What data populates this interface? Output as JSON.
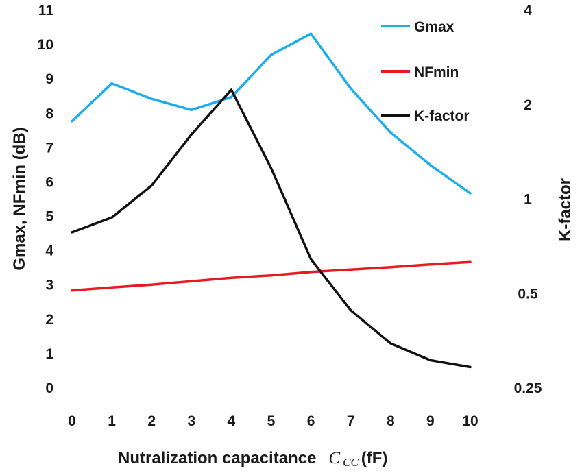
{
  "chart_data": {
    "type": "line",
    "title": "",
    "x": [
      0,
      1,
      2,
      3,
      4,
      5,
      6,
      7,
      8,
      9,
      10
    ],
    "xlim": [
      0,
      10
    ],
    "x_ticks": [
      "0",
      "1",
      "2",
      "3",
      "4",
      "5",
      "6",
      "7",
      "8",
      "9",
      "10"
    ],
    "xlabel": {
      "prefix": "Nutralization capacitance",
      "symbol": "C",
      "subscript": "CC",
      "unit": "(fF)"
    },
    "ylabel_left": "Gmax, NFmin (dB)",
    "ylim_left": [
      0,
      11
    ],
    "y_ticks_left": [
      "0",
      "1",
      "2",
      "3",
      "4",
      "5",
      "6",
      "7",
      "8",
      "9",
      "10",
      "11"
    ],
    "ylabel_right": "K-factor",
    "y_right_scale": "log",
    "ylim_right": [
      0.25,
      4
    ],
    "y_ticks_right": [
      {
        "label": "0.25",
        "value": 0.25
      },
      {
        "label": "0.5",
        "value": 0.5
      },
      {
        "label": "1",
        "value": 1
      },
      {
        "label": "2",
        "value": 2
      },
      {
        "label": "4",
        "value": 4
      }
    ],
    "legend_position": "top-right",
    "series": [
      {
        "name": "Gmax",
        "axis": "left",
        "color": "#1aaeee",
        "values": [
          7.75,
          8.85,
          8.4,
          8.08,
          8.45,
          9.68,
          10.3,
          8.7,
          7.42,
          6.47,
          5.65
        ]
      },
      {
        "name": "NFmin",
        "axis": "left",
        "color": "#e8191f",
        "values": [
          2.82,
          2.91,
          2.99,
          3.09,
          3.19,
          3.26,
          3.36,
          3.43,
          3.5,
          3.58,
          3.65
        ]
      },
      {
        "name": "K-factor",
        "axis": "right",
        "color": "#111111",
        "values": [
          0.78,
          0.87,
          1.1,
          1.6,
          2.22,
          1.25,
          0.64,
          0.44,
          0.345,
          0.305,
          0.29
        ]
      }
    ]
  }
}
